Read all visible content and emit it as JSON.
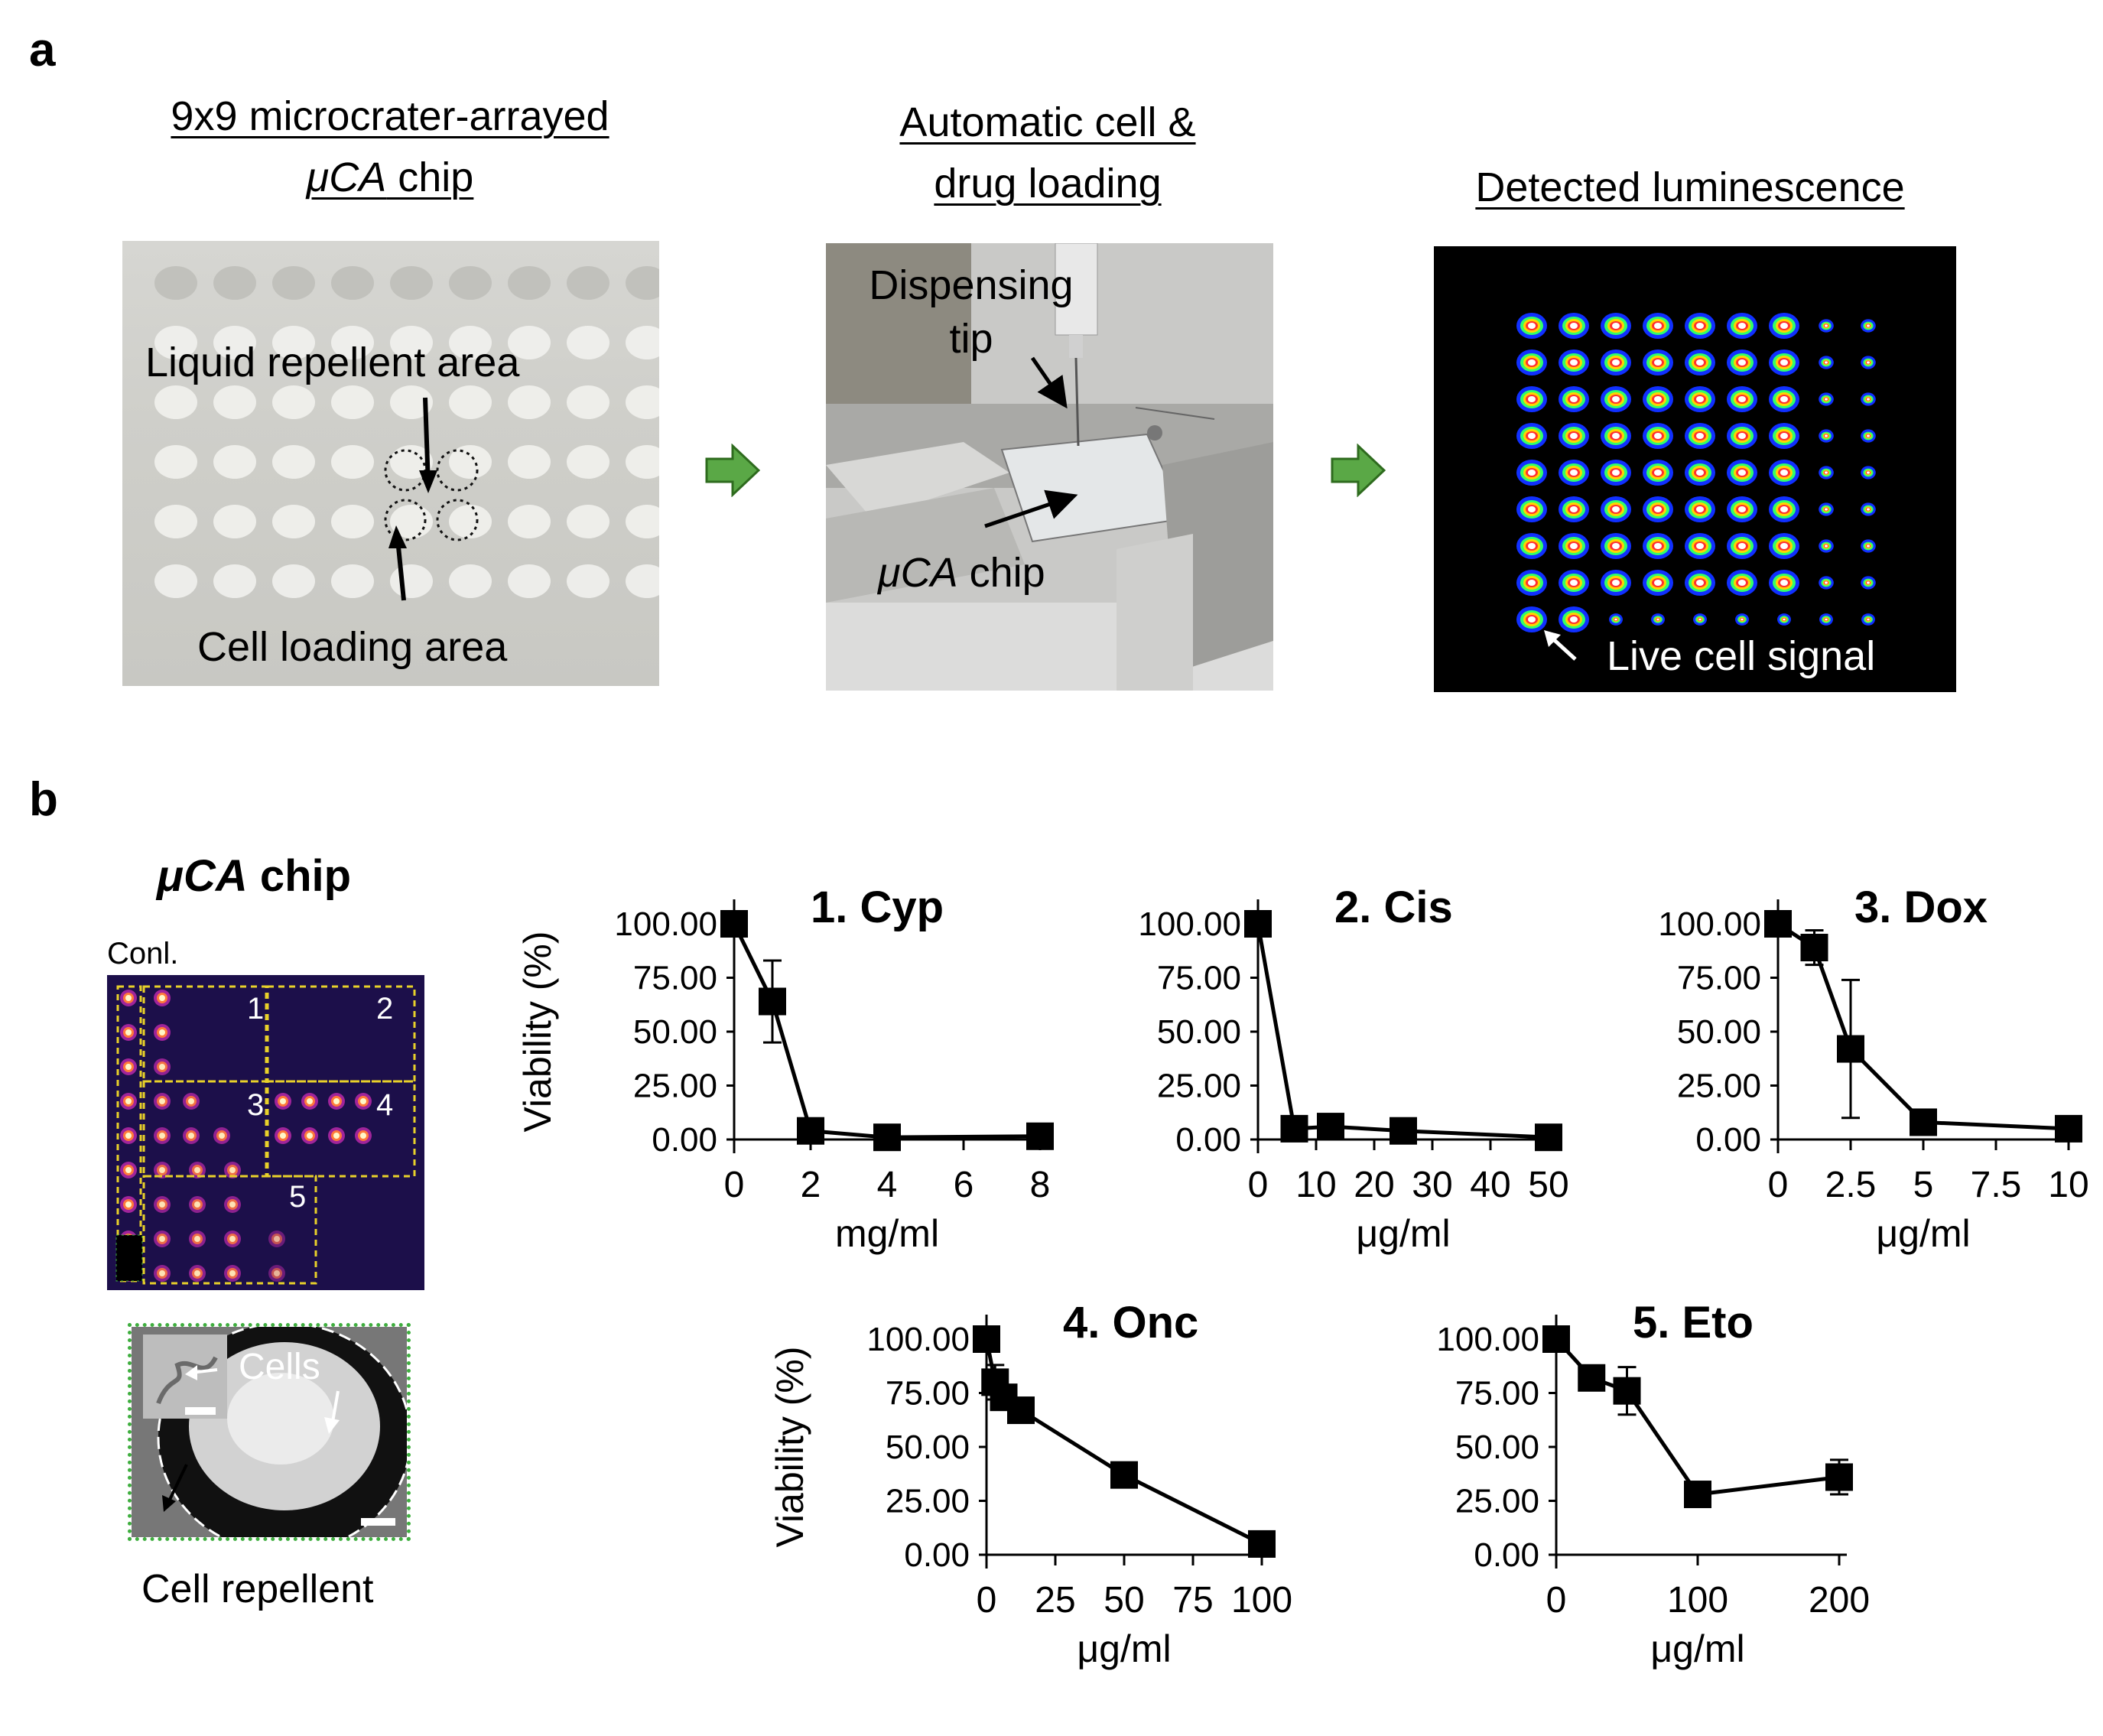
{
  "panel_a": {
    "letter": "a",
    "step1": {
      "title_line1": "9x9 microcrater-arrayed",
      "title_line2_italic": "μCA",
      "title_line2_rest": " chip",
      "label_repellent": "Liquid repellent area",
      "label_loading": "Cell loading area"
    },
    "step2": {
      "title_line1": "Automatic cell &",
      "title_line2": "drug loading",
      "label_tip_line1": "Dispensing",
      "label_tip_line2": "tip",
      "label_chip_italic": "μCA",
      "label_chip_rest": " chip"
    },
    "step3": {
      "title": "Detected luminescence",
      "label_signal": "Live cell signal"
    },
    "colors": {
      "arrow": "#5aa846",
      "arrow_stroke": "#2e6b1e"
    }
  },
  "panel_b": {
    "letter": "b",
    "chip_title_italic": "μCA",
    "chip_title_rest": " chip",
    "conl_label": "Conl.",
    "region_numbers": [
      "1",
      "2",
      "3",
      "4",
      "5"
    ],
    "cells_label": "Cells",
    "repellent_label": "Cell repellent",
    "colors": {
      "grid_line": "#e8d12a",
      "inset_border": "#3fae3f"
    }
  },
  "chart_data": [
    {
      "type": "line",
      "title": "1. Cyp",
      "xlabel": "mg/ml",
      "ylabel": "Viability (%)",
      "xlim": [
        0,
        8
      ],
      "ylim": [
        0,
        100
      ],
      "xticks": [
        0,
        2,
        4,
        6,
        8
      ],
      "xtick_labels": [
        "0",
        "2",
        "4",
        "6",
        "8"
      ],
      "yticks": [
        "0.00",
        "25.00",
        "50.00",
        "75.00",
        "100.00"
      ],
      "x": [
        0,
        1,
        2,
        4,
        8
      ],
      "y": [
        100,
        64,
        4,
        1,
        1.5
      ],
      "err": [
        0,
        19,
        0,
        0,
        0
      ]
    },
    {
      "type": "line",
      "title": "2. Cis",
      "xlabel": "μg/ml",
      "ylabel": "",
      "xlim": [
        0,
        50
      ],
      "ylim": [
        0,
        100
      ],
      "xticks": [
        0,
        10,
        20,
        30,
        40,
        50
      ],
      "xtick_labels": [
        "0",
        "10",
        "20",
        "30",
        "40",
        "50"
      ],
      "yticks": [
        "0.00",
        "25.00",
        "50.00",
        "75.00",
        "100.00"
      ],
      "x": [
        0,
        6.25,
        12.5,
        25,
        50
      ],
      "y": [
        100,
        5,
        6,
        4,
        1
      ],
      "err": [
        0,
        0,
        0,
        0,
        0
      ]
    },
    {
      "type": "line",
      "title": "3. Dox",
      "xlabel": "μg/ml",
      "ylabel": "",
      "xlim": [
        0,
        10
      ],
      "ylim": [
        0,
        100
      ],
      "xticks": [
        0,
        2.5,
        5,
        7.5,
        10
      ],
      "xtick_labels": [
        "0",
        "2.5",
        "5",
        "7.5",
        "10"
      ],
      "yticks": [
        "0.00",
        "25.00",
        "50.00",
        "75.00",
        "100.00"
      ],
      "x": [
        0,
        1.25,
        2.5,
        5,
        10
      ],
      "y": [
        100,
        89,
        42,
        8,
        5
      ],
      "err": [
        0,
        8,
        32,
        0,
        0
      ]
    },
    {
      "type": "line",
      "title": "4. Onc",
      "xlabel": "μg/ml",
      "ylabel": "Viability (%)",
      "xlim": [
        0,
        100
      ],
      "ylim": [
        0,
        100
      ],
      "xticks": [
        0,
        25,
        50,
        75,
        100
      ],
      "xtick_labels": [
        "0",
        "25",
        "50",
        "75",
        "100"
      ],
      "yticks": [
        "0.00",
        "25.00",
        "50.00",
        "75.00",
        "100.00"
      ],
      "x": [
        0,
        3.125,
        6.25,
        12.5,
        50,
        100
      ],
      "y": [
        100,
        80,
        73,
        67,
        37,
        5
      ],
      "err": [
        0,
        8,
        5,
        0,
        0,
        0
      ]
    },
    {
      "type": "line",
      "title": "5. Eto",
      "xlabel": "μg/ml",
      "ylabel": "",
      "xlim": [
        0,
        200
      ],
      "ylim": [
        0,
        100
      ],
      "xticks": [
        0,
        100,
        200
      ],
      "xtick_labels": [
        "0",
        "100",
        "200"
      ],
      "yticks": [
        "0.00",
        "25.00",
        "50.00",
        "75.00",
        "100.00"
      ],
      "x": [
        0,
        25,
        50,
        100,
        200
      ],
      "y": [
        100,
        82,
        76,
        28,
        36
      ],
      "err": [
        0,
        5,
        11,
        0,
        8
      ]
    }
  ]
}
